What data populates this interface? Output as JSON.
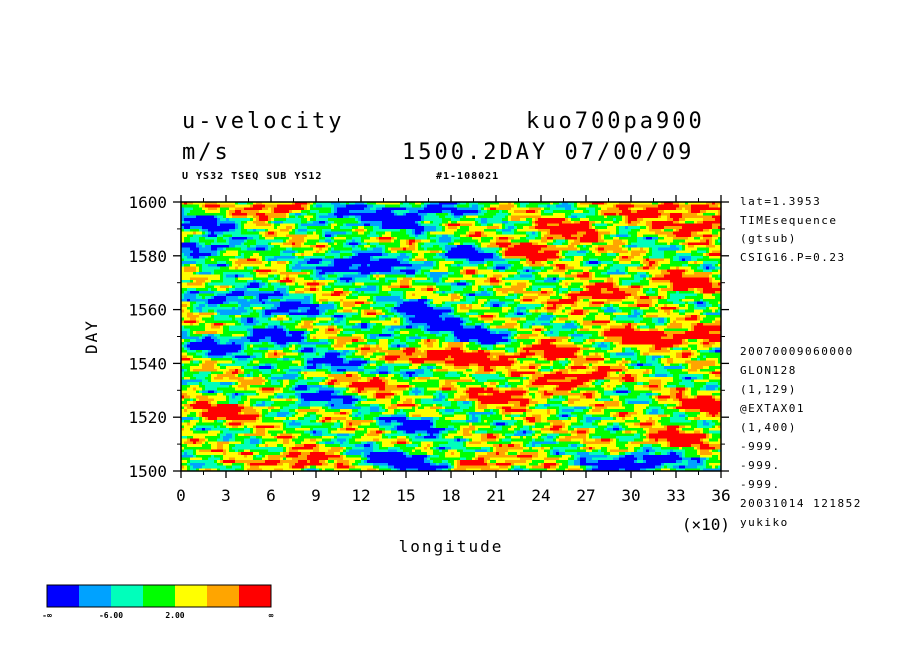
{
  "header": {
    "title_left": "u-velocity",
    "title_right": "kuo700pa900",
    "units": "m/s",
    "time_label": "1500.2DAY 07/00/09",
    "subtitle_left": "U YS32 TSEQ SUB YS12",
    "subtitle_right": "#1-108021"
  },
  "side_info": {
    "top": [
      "lat=1.3953",
      "TIMEsequence",
      "(gtsub)",
      "CSIG16.P=0.23"
    ],
    "bottom": [
      "20070009060000",
      "GLON128",
      "(1,129)",
      "@EXTAX01",
      "(1,400)",
      "-999.",
      "-999.",
      "-999.",
      "20031014 121852",
      "yukiko"
    ]
  },
  "chart_data": {
    "type": "heatmap",
    "title": "u-velocity",
    "units": "m/s",
    "xlabel": "longitude",
    "ylabel": "DAY",
    "x_multiplier_label": "(×10)",
    "xlim": [
      0,
      36
    ],
    "ylim": [
      1500,
      1600
    ],
    "x_ticks": [
      "0",
      "3",
      "6",
      "9",
      "12",
      "15",
      "18",
      "21",
      "24",
      "27",
      "30",
      "33",
      "36"
    ],
    "y_ticks": [
      "1500",
      "1520",
      "1540",
      "1560",
      "1580",
      "1600"
    ],
    "colorbar": {
      "colors": [
        "#0000ff",
        "#00a2ff",
        "#00ffbb",
        "#00ff00",
        "#ffff00",
        "#ffa500",
        "#ff0000"
      ],
      "labels": [
        "-∞",
        "-6.00",
        "2.00",
        "∞"
      ]
    },
    "blobs": [
      {
        "x": 10.5,
        "y": 1596,
        "c": 0
      },
      {
        "x": 16.5,
        "y": 1597,
        "c": 0
      },
      {
        "x": 14,
        "y": 1592,
        "c": 0
      },
      {
        "x": 2,
        "y": 1592,
        "c": 0
      },
      {
        "x": 3.5,
        "y": 1565,
        "c": 0
      },
      {
        "x": 7,
        "y": 1560,
        "c": 0
      },
      {
        "x": 13,
        "y": 1575,
        "c": 0
      },
      {
        "x": 11,
        "y": 1578,
        "c": 0
      },
      {
        "x": 19,
        "y": 1580,
        "c": 0
      },
      {
        "x": 16,
        "y": 1560,
        "c": 0
      },
      {
        "x": 16.8,
        "y": 1554,
        "c": 0
      },
      {
        "x": 6,
        "y": 1550,
        "c": 0
      },
      {
        "x": 2.5,
        "y": 1546,
        "c": 0
      },
      {
        "x": 20,
        "y": 1550,
        "c": 0
      },
      {
        "x": 15.5,
        "y": 1537,
        "c": 0
      },
      {
        "x": 16,
        "y": 1517,
        "c": 0
      },
      {
        "x": 9,
        "y": 1527,
        "c": 0
      },
      {
        "x": 14,
        "y": 1505,
        "c": 0
      },
      {
        "x": 17,
        "y": 1502,
        "c": 0
      },
      {
        "x": 31.5,
        "y": 1504,
        "c": 0
      },
      {
        "x": 29,
        "y": 1502,
        "c": 0
      },
      {
        "x": 9.5,
        "y": 1540,
        "c": 0
      },
      {
        "x": 1.5,
        "y": 1583,
        "c": 0
      },
      {
        "x": 26,
        "y": 1590,
        "c": 6
      },
      {
        "x": 32,
        "y": 1597,
        "c": 6
      },
      {
        "x": 35,
        "y": 1591,
        "c": 6
      },
      {
        "x": 33.5,
        "y": 1570,
        "c": 6
      },
      {
        "x": 27.5,
        "y": 1565,
        "c": 6
      },
      {
        "x": 30.5,
        "y": 1550,
        "c": 6
      },
      {
        "x": 34.5,
        "y": 1550,
        "c": 6
      },
      {
        "x": 24,
        "y": 1544,
        "c": 6
      },
      {
        "x": 26.5,
        "y": 1535,
        "c": 6
      },
      {
        "x": 22,
        "y": 1528,
        "c": 6
      },
      {
        "x": 19,
        "y": 1540,
        "c": 6
      },
      {
        "x": 33,
        "y": 1512,
        "c": 6
      },
      {
        "x": 35,
        "y": 1525,
        "c": 6
      },
      {
        "x": 20,
        "y": 1503,
        "c": 6
      },
      {
        "x": 16.5,
        "y": 1543,
        "c": 6
      },
      {
        "x": 6,
        "y": 1597,
        "c": 6
      },
      {
        "x": 13.5,
        "y": 1533,
        "c": 6
      },
      {
        "x": 8,
        "y": 1504,
        "c": 6
      },
      {
        "x": 3,
        "y": 1522,
        "c": 6
      },
      {
        "x": 23.5,
        "y": 1582,
        "c": 6
      }
    ]
  }
}
